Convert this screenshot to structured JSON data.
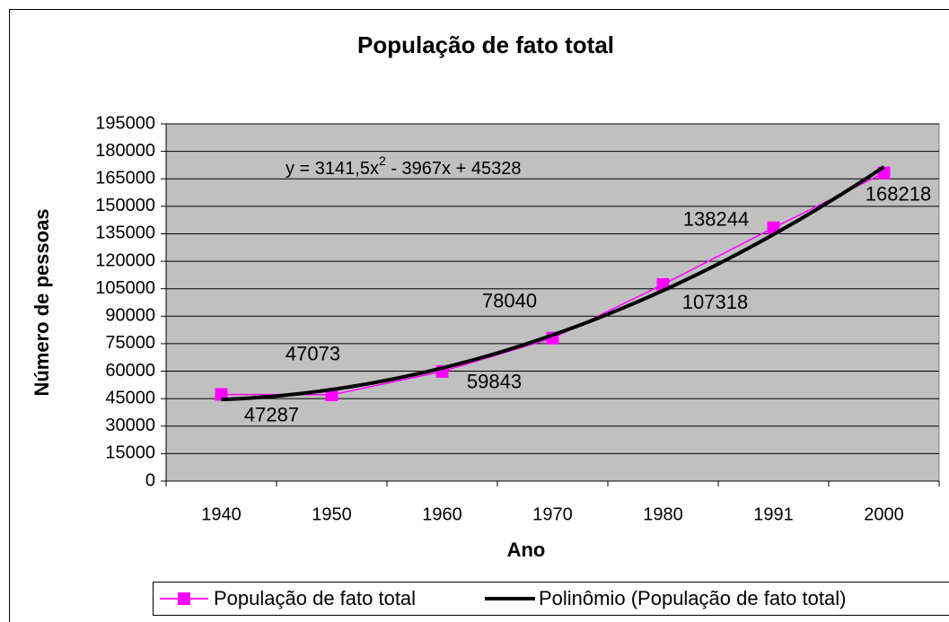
{
  "chart_data": {
    "type": "line",
    "title": "População de fato total",
    "x_label": "Ano",
    "y_label": "Número de pessoas",
    "categories": [
      "1940",
      "1950",
      "1960",
      "1970",
      "1980",
      "1991",
      "2000"
    ],
    "series": [
      {
        "name": "População de fato total",
        "color": "#ff00ff",
        "values": [
          47287,
          47073,
          59843,
          78040,
          107318,
          138244,
          168218
        ]
      }
    ],
    "trendline": {
      "name": "Polinômio (População de fato total)",
      "color": "#000000",
      "coefficients": [
        3141.5,
        -3967,
        45328
      ],
      "equation": [
        "y = 3141,5x",
        "2",
        " - 3967x + 45328"
      ]
    },
    "ylim": [
      0,
      195000
    ],
    "yticks": [
      0,
      15000,
      30000,
      45000,
      60000,
      75000,
      90000,
      105000,
      120000,
      135000,
      150000,
      165000,
      180000,
      195000
    ],
    "grid": true,
    "legend": "bottom"
  }
}
